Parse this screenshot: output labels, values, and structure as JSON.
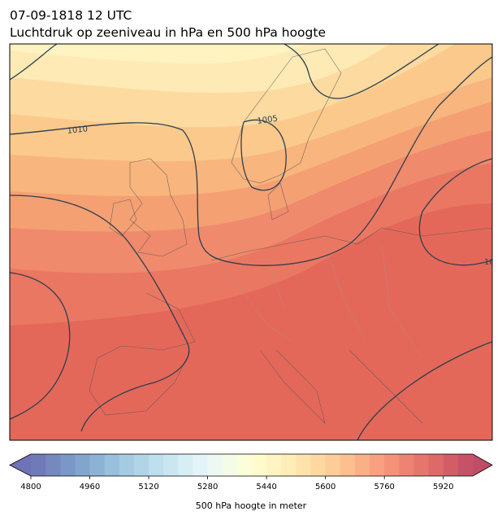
{
  "header": {
    "datetime": "07-09-1818 12 UTC",
    "title": "Luchtdruk op zeeniveau in hPa en 500 hPa hoogte"
  },
  "map": {
    "contour_labels": [
      "1010",
      "1005",
      "10"
    ]
  },
  "colorbar": {
    "label": "500 hPa hoogte in meter",
    "lim": [
      4800,
      6000
    ],
    "step": 40,
    "ticks": [
      4800,
      4960,
      5120,
      5280,
      5440,
      5600,
      5760,
      5920
    ]
  }
}
